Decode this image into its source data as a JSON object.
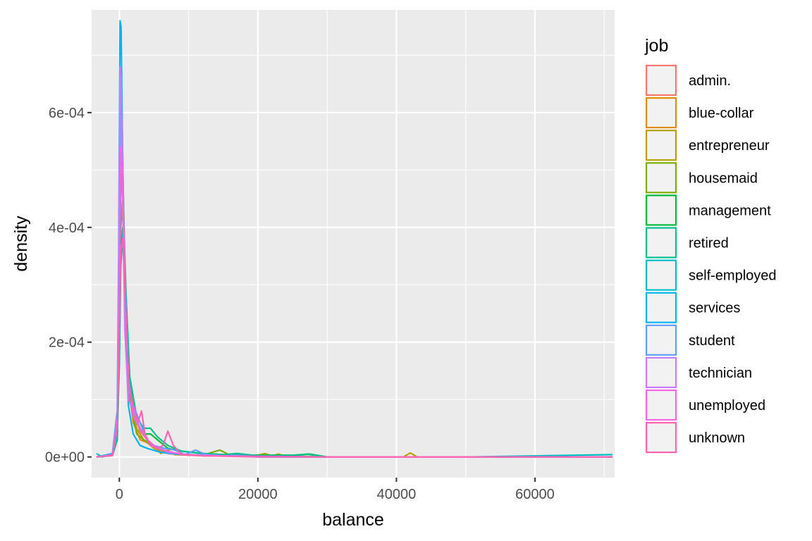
{
  "chart_data": {
    "type": "line",
    "subtype": "density",
    "xlabel": "balance",
    "ylabel": "density",
    "xlim": [
      -4000,
      71500
    ],
    "ylim": [
      -3.6e-05,
      0.000779
    ],
    "x_ticks": [
      0,
      20000,
      40000,
      60000
    ],
    "x_tick_labels": [
      "0",
      "20000",
      "40000",
      "60000"
    ],
    "y_ticks": [
      0,
      0.0002,
      0.0004,
      0.0006
    ],
    "y_tick_labels": [
      "0e+00",
      "2e-04",
      "4e-04",
      "6e-04"
    ],
    "grid": true,
    "legend": {
      "title": "job",
      "position": "right"
    },
    "series": [
      {
        "name": "admin.",
        "color": "#F8766D",
        "points": [
          [
            -3300,
            0
          ],
          [
            -1000,
            2e-06
          ],
          [
            -300,
            3e-05
          ],
          [
            0,
            0.00022
          ],
          [
            200,
            0.00045
          ],
          [
            450,
            0.0005
          ],
          [
            800,
            0.00035
          ],
          [
            1300,
            0.00016
          ],
          [
            2000,
            8e-05
          ],
          [
            3000,
            4.5e-05
          ],
          [
            4000,
            3e-05
          ],
          [
            5000,
            1.5e-05
          ],
          [
            7000,
            6e-06
          ],
          [
            10000,
            3e-06
          ],
          [
            15000,
            2e-06
          ],
          [
            20000,
            1e-06
          ],
          [
            30000,
            0
          ],
          [
            50000,
            0
          ],
          [
            71200,
            0
          ]
        ]
      },
      {
        "name": "blue-collar",
        "color": "#DE8C00",
        "points": [
          [
            -3300,
            0
          ],
          [
            -1000,
            5e-06
          ],
          [
            -300,
            5e-05
          ],
          [
            0,
            0.00028
          ],
          [
            200,
            0.00052
          ],
          [
            450,
            0.00053
          ],
          [
            800,
            0.00034
          ],
          [
            1300,
            0.00013
          ],
          [
            2000,
            6e-05
          ],
          [
            3000,
            3e-05
          ],
          [
            4000,
            2.5e-05
          ],
          [
            5000,
            1.8e-05
          ],
          [
            6000,
            6e-06
          ],
          [
            7000,
            1.2e-05
          ],
          [
            8000,
            4e-06
          ],
          [
            12000,
            2e-06
          ],
          [
            20000,
            1e-06
          ],
          [
            30000,
            0
          ],
          [
            50000,
            0
          ],
          [
            71200,
            0
          ]
        ]
      },
      {
        "name": "entrepreneur",
        "color": "#B79F00",
        "points": [
          [
            -3300,
            0
          ],
          [
            -1000,
            4e-06
          ],
          [
            -300,
            4e-05
          ],
          [
            0,
            0.0002
          ],
          [
            200,
            0.0004
          ],
          [
            500,
            0.00045
          ],
          [
            900,
            0.0003
          ],
          [
            1500,
            0.00012
          ],
          [
            2500,
            5e-05
          ],
          [
            3500,
            3e-05
          ],
          [
            5000,
            1.5e-05
          ],
          [
            8000,
            5e-06
          ],
          [
            12000,
            2e-06
          ],
          [
            20000,
            3e-06
          ],
          [
            21000,
            6e-06
          ],
          [
            22000,
            2e-06
          ],
          [
            23000,
            5e-06
          ],
          [
            24000,
            1e-06
          ],
          [
            30000,
            0
          ],
          [
            41000,
            0
          ],
          [
            42000,
            7e-06
          ],
          [
            43000,
            0
          ],
          [
            71200,
            0
          ]
        ]
      },
      {
        "name": "housemaid",
        "color": "#7CAE00",
        "points": [
          [
            -3300,
            0
          ],
          [
            -1000,
            5e-06
          ],
          [
            -300,
            4e-05
          ],
          [
            0,
            0.00024
          ],
          [
            200,
            0.00041
          ],
          [
            500,
            0.00042
          ],
          [
            900,
            0.00027
          ],
          [
            1500,
            0.0001
          ],
          [
            2000,
            7e-05
          ],
          [
            2500,
            4e-05
          ],
          [
            3500,
            3e-05
          ],
          [
            5000,
            2e-05
          ],
          [
            7000,
            8e-06
          ],
          [
            9000,
            4e-06
          ],
          [
            12000,
            3e-06
          ],
          [
            14500,
            1.2e-05
          ],
          [
            16000,
            3e-06
          ],
          [
            20000,
            3e-06
          ],
          [
            24000,
            2e-06
          ],
          [
            30000,
            0
          ],
          [
            71200,
            0
          ]
        ]
      },
      {
        "name": "management",
        "color": "#00BA38",
        "points": [
          [
            -3300,
            0
          ],
          [
            -1000,
            3e-06
          ],
          [
            -300,
            3e-05
          ],
          [
            0,
            0.00018
          ],
          [
            200,
            0.00035
          ],
          [
            500,
            0.0004
          ],
          [
            900,
            0.00028
          ],
          [
            1500,
            0.00012
          ],
          [
            2500,
            6e-05
          ],
          [
            3500,
            4e-05
          ],
          [
            4500,
            4e-05
          ],
          [
            5500,
            3e-05
          ],
          [
            7000,
            1.5e-05
          ],
          [
            9000,
            1e-05
          ],
          [
            12000,
            6e-06
          ],
          [
            15000,
            4e-06
          ],
          [
            20000,
            3e-06
          ],
          [
            25000,
            3e-06
          ],
          [
            27500,
            5e-06
          ],
          [
            30000,
            0
          ],
          [
            71200,
            0
          ]
        ]
      },
      {
        "name": "retired",
        "color": "#00C08B",
        "points": [
          [
            -3300,
            0
          ],
          [
            -1000,
            3e-06
          ],
          [
            -300,
            3e-05
          ],
          [
            0,
            0.00016
          ],
          [
            200,
            0.00033
          ],
          [
            500,
            0.00039
          ],
          [
            900,
            0.0003
          ],
          [
            1500,
            0.00014
          ],
          [
            2500,
            7e-05
          ],
          [
            3500,
            5e-05
          ],
          [
            4500,
            5e-05
          ],
          [
            5500,
            3.5e-05
          ],
          [
            7000,
            2e-05
          ],
          [
            9000,
            1e-05
          ],
          [
            12000,
            6e-06
          ],
          [
            15000,
            4e-06
          ],
          [
            17000,
            6e-06
          ],
          [
            20000,
            2e-06
          ],
          [
            26000,
            3e-06
          ],
          [
            27000,
            5e-06
          ],
          [
            30000,
            0
          ],
          [
            71200,
            0
          ]
        ]
      },
      {
        "name": "self-employed",
        "color": "#00BFC4",
        "points": [
          [
            -3300,
            6e-06
          ],
          [
            -2500,
            0
          ],
          [
            -1000,
            4e-06
          ],
          [
            -300,
            4e-05
          ],
          [
            0,
            0.00025
          ],
          [
            200,
            0.00048
          ],
          [
            450,
            0.0005
          ],
          [
            800,
            0.00033
          ],
          [
            1300,
            0.00015
          ],
          [
            2000,
            8e-05
          ],
          [
            3000,
            5e-05
          ],
          [
            4000,
            3e-05
          ],
          [
            5000,
            2e-05
          ],
          [
            7000,
            8e-06
          ],
          [
            10000,
            4e-06
          ],
          [
            15000,
            2e-06
          ],
          [
            20000,
            1e-06
          ],
          [
            30000,
            0
          ],
          [
            50000,
            0
          ],
          [
            71200,
            4e-06
          ]
        ]
      },
      {
        "name": "services",
        "color": "#00B4F0",
        "points": [
          [
            -3300,
            0
          ],
          [
            -1000,
            6e-06
          ],
          [
            -300,
            8e-05
          ],
          [
            -100,
            0.00035
          ],
          [
            100,
            0.00076
          ],
          [
            250,
            0.00075
          ],
          [
            450,
            0.00055
          ],
          [
            800,
            0.00025
          ],
          [
            1300,
            9e-05
          ],
          [
            2000,
            4e-05
          ],
          [
            3000,
            2e-05
          ],
          [
            4000,
            1.5e-05
          ],
          [
            6000,
            8e-06
          ],
          [
            9000,
            4e-06
          ],
          [
            15000,
            2e-06
          ],
          [
            20000,
            0
          ],
          [
            50000,
            0
          ],
          [
            71200,
            0
          ]
        ]
      },
      {
        "name": "student",
        "color": "#619CFF",
        "points": [
          [
            -3300,
            0
          ],
          [
            -1000,
            3e-06
          ],
          [
            -300,
            5e-05
          ],
          [
            0,
            0.00035
          ],
          [
            200,
            0.00062
          ],
          [
            400,
            0.00058
          ],
          [
            800,
            0.0003
          ],
          [
            1300,
            0.00012
          ],
          [
            2000,
            9e-05
          ],
          [
            3000,
            6e-05
          ],
          [
            4000,
            3e-05
          ],
          [
            5000,
            2e-05
          ],
          [
            6500,
            1.5e-05
          ],
          [
            8000,
            1.2e-05
          ],
          [
            9500,
            4e-06
          ],
          [
            11000,
            1.2e-05
          ],
          [
            12500,
            4e-06
          ],
          [
            15000,
            2e-06
          ],
          [
            17000,
            3e-06
          ],
          [
            20000,
            0
          ],
          [
            50000,
            0
          ],
          [
            71200,
            0
          ]
        ]
      },
      {
        "name": "technician",
        "color": "#C77CFF",
        "points": [
          [
            -3300,
            0
          ],
          [
            -1000,
            4e-06
          ],
          [
            -300,
            7e-05
          ],
          [
            -100,
            0.0003
          ],
          [
            100,
            0.00068
          ],
          [
            250,
            0.00066
          ],
          [
            450,
            0.00048
          ],
          [
            800,
            0.00022
          ],
          [
            1300,
            0.0001
          ],
          [
            2000,
            8e-05
          ],
          [
            3000,
            5e-05
          ],
          [
            4000,
            3e-05
          ],
          [
            5000,
            2e-05
          ],
          [
            7000,
            8e-06
          ],
          [
            10000,
            4e-06
          ],
          [
            15000,
            2e-06
          ],
          [
            20000,
            1e-06
          ],
          [
            30000,
            0
          ],
          [
            50000,
            0
          ],
          [
            71200,
            0
          ]
        ]
      },
      {
        "name": "unemployed",
        "color": "#F564E3",
        "points": [
          [
            -3300,
            0
          ],
          [
            -1000,
            3e-06
          ],
          [
            -300,
            5e-05
          ],
          [
            0,
            0.00027
          ],
          [
            200,
            0.00054
          ],
          [
            450,
            0.0005
          ],
          [
            800,
            0.0003
          ],
          [
            1300,
            0.00014
          ],
          [
            2000,
            7e-05
          ],
          [
            3000,
            5e-05
          ],
          [
            4000,
            3e-05
          ],
          [
            5500,
            1.5e-05
          ],
          [
            7000,
            1e-05
          ],
          [
            9000,
            4e-06
          ],
          [
            12000,
            2e-06
          ],
          [
            20000,
            1e-06
          ],
          [
            30000,
            0
          ],
          [
            50000,
            0
          ],
          [
            71200,
            0
          ]
        ]
      },
      {
        "name": "unknown",
        "color": "#FF64B0",
        "points": [
          [
            -3300,
            0
          ],
          [
            -1000,
            3e-06
          ],
          [
            -300,
            5e-05
          ],
          [
            0,
            0.00022
          ],
          [
            200,
            0.00036
          ],
          [
            500,
            0.00038
          ],
          [
            900,
            0.00026
          ],
          [
            1400,
            0.00012
          ],
          [
            2000,
            9e-05
          ],
          [
            2700,
            6e-05
          ],
          [
            3200,
            8e-05
          ],
          [
            3700,
            4e-05
          ],
          [
            4500,
            2e-05
          ],
          [
            5500,
            1.5e-05
          ],
          [
            6300,
            2e-05
          ],
          [
            7000,
            4.5e-05
          ],
          [
            7800,
            2e-05
          ],
          [
            9000,
            4e-06
          ],
          [
            12000,
            2e-06
          ],
          [
            20000,
            0
          ],
          [
            50000,
            0
          ],
          [
            71200,
            0
          ]
        ]
      }
    ]
  }
}
